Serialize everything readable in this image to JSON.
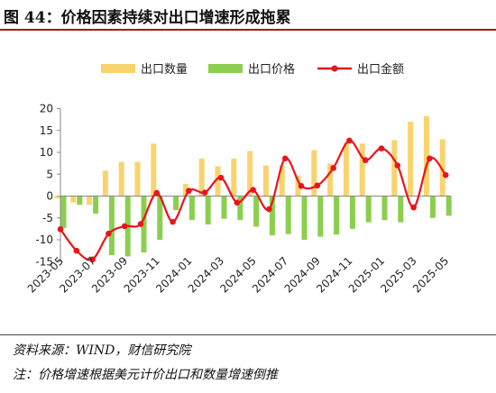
{
  "title": "图 44：价格因素持续对出口增速形成拖累",
  "source": "资料来源：WIND，财信研究院",
  "note": "注：价格增速根据美元计价出口和数量增速倒推",
  "colors": {
    "volume": "#f9d36e",
    "price": "#8cce4f",
    "value": "#e8151b"
  },
  "chart_data": {
    "type": "bar",
    "legend_position": "top",
    "grid": false,
    "ylim": [
      -15,
      20
    ],
    "yticks": [
      -15,
      -10,
      -5,
      0,
      5,
      10,
      15,
      20
    ],
    "x_tick_labels": [
      "2023-05",
      "2023-07",
      "2023-09",
      "2023-11",
      "2024-01",
      "2024-03",
      "2024-05",
      "2024-07",
      "2024-09",
      "2024-11",
      "2025-01",
      "2025-03",
      "2025-05"
    ],
    "categories": [
      "2023-05",
      "2023-06",
      "2023-07",
      "2023-08",
      "2023-09",
      "2023-10",
      "2023-11",
      "2023-12",
      "2024-01",
      "2024-02",
      "2024-03",
      "2024-04",
      "2024-05",
      "2024-06",
      "2024-07",
      "2024-08",
      "2024-09",
      "2024-10",
      "2024-11",
      "2024-12",
      "2025-01",
      "2025-02",
      "2025-03",
      "2025-04",
      "2025-05"
    ],
    "series": [
      {
        "name": "出口数量",
        "type": "bar",
        "values": [
          -0.5,
          -1.5,
          -2.0,
          5.8,
          7.8,
          7.8,
          12.0,
          null,
          2.8,
          8.6,
          6.8,
          8.6,
          10.3,
          7.0,
          7.0,
          4.7,
          10.5,
          7.4,
          12.2,
          12.0,
          null,
          12.8,
          17.0,
          18.3,
          13.0
        ]
      },
      {
        "name": "出口价格",
        "type": "bar",
        "values": [
          -7.3,
          -2.0,
          -4.0,
          -13.5,
          -13.8,
          -12.9,
          -10.0,
          -3.2,
          -5.5,
          -6.5,
          -5.2,
          -5.5,
          -7.0,
          -9.0,
          -8.7,
          -10.0,
          -9.3,
          -8.8,
          -7.5,
          -6.0,
          -5.5,
          -6.0,
          null,
          -5.0,
          -4.5
        ]
      },
      {
        "name": "出口金额",
        "type": "line",
        "values": [
          -7.6,
          -12.5,
          -14.5,
          -8.6,
          -6.9,
          -6.4,
          0.7,
          -5.9,
          1.2,
          0.8,
          4.2,
          -1.5,
          1.4,
          -3.0,
          8.6,
          2.3,
          2.4,
          6.4,
          12.7,
          8.2,
          10.9,
          7.0,
          -2.6,
          8.6,
          4.8
        ]
      }
    ]
  }
}
